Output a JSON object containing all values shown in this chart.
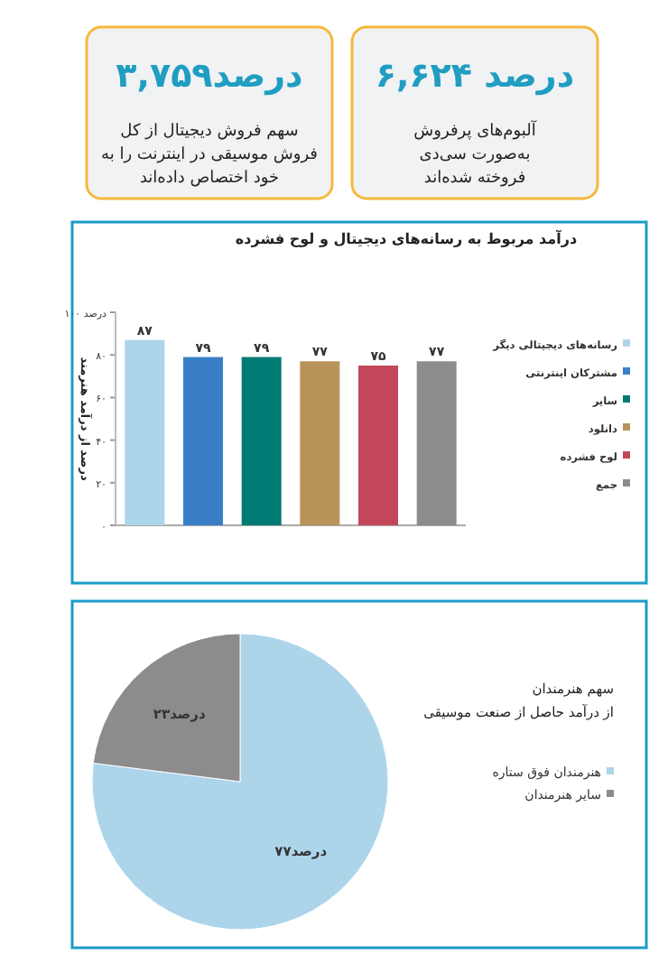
{
  "chart_data": [
    {
      "type": "other",
      "title": "۶,۶۲۴ درصد",
      "annotations": [
        "آلبوم‌های پرفروش",
        "به‌صورت سی‌دی",
        "فروخته شده‌اند"
      ]
    },
    {
      "type": "other",
      "title": "۳,۷۵۹درصد",
      "annotations": [
        "سهم فروش دیجیتال از کل",
        "فروش موسیقی در اینترنت را به",
        "خود اختصاص داده‌اند"
      ]
    },
    {
      "type": "bar",
      "title": "درآمد مربوط به رسانه‌های دیجیتال و لوح فشرده",
      "ylabel": "درصد از درآمد هنرمند",
      "categories": [
        null
      ],
      "series": [
        {
          "name": "رسانه‌های دیجیتالی دیگر",
          "color": "#acd5ea",
          "values": [
            87
          ],
          "value_labels": [
            "۸۷"
          ]
        },
        {
          "name": "مشترکان اینترنتی",
          "color": "#3a7fc6",
          "values": [
            79
          ],
          "value_labels": [
            "۷۹"
          ]
        },
        {
          "name": "سایر",
          "color": "#007b73",
          "values": [
            79
          ],
          "value_labels": [
            "۷۹"
          ]
        },
        {
          "name": "دانلود",
          "color": "#b8935a",
          "values": [
            77
          ],
          "value_labels": [
            "۷۷"
          ]
        },
        {
          "name": "لوح فشرده",
          "color": "#c3465a",
          "values": [
            75
          ],
          "value_labels": [
            "۷۵"
          ]
        },
        {
          "name": "جمع",
          "color": "#8c8c8c",
          "values": [
            77
          ],
          "value_labels": [
            "۷۷"
          ]
        }
      ],
      "ylim": [
        0,
        100
      ],
      "yticks": [
        {
          "value": 0,
          "label": "۰"
        },
        {
          "value": 20,
          "label": "۲۰"
        },
        {
          "value": 40,
          "label": "۴۰"
        },
        {
          "value": 60,
          "label": "۶۰"
        },
        {
          "value": 80,
          "label": "۸۰"
        },
        {
          "value": 100,
          "label": "۱۰۰ درصد"
        }
      ],
      "legend": "right",
      "grid": false
    },
    {
      "type": "pie",
      "title": "سهم هنرمندان",
      "subtitle": "از درآمد حاصل از صنعت موسیقی",
      "categories": [
        "هنرمندان فوق ستاره",
        "سایر هنرمندان"
      ],
      "values": [
        77,
        23
      ],
      "colors": [
        "#acd5ea",
        "#8c8c8c"
      ],
      "value_labels": [
        "۷۷درصد",
        "۲۳درصد"
      ],
      "legend": "right"
    }
  ]
}
